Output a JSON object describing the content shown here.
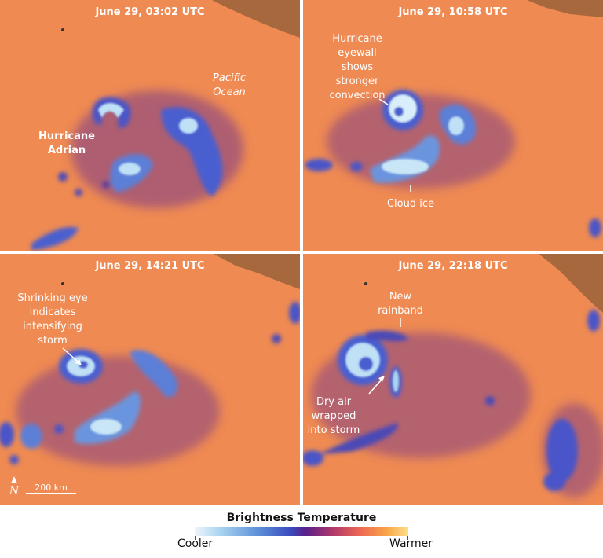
{
  "panels": [
    {
      "timestamp": "June 29, 03:02 UTC",
      "labels": {
        "hurricane_line1": "Hurricane",
        "hurricane_line2": "Adrian",
        "ocean_line1": "Pacific",
        "ocean_line2": "Ocean"
      }
    },
    {
      "timestamp": "June 29, 10:58 UTC",
      "labels": {
        "eyewall_lines": [
          "Hurricane",
          "eyewall",
          "shows",
          "stronger",
          "convection"
        ],
        "cloud_ice": "Cloud ice"
      }
    },
    {
      "timestamp": "June 29, 14:21 UTC",
      "labels": {
        "eye_lines": [
          "Shrinking eye",
          "indicates",
          "intensifying",
          "storm"
        ]
      },
      "scale_bar": "200 km",
      "north_arrow": "N"
    },
    {
      "timestamp": "June 29, 22:18 UTC",
      "labels": {
        "rainband_lines": [
          "New",
          "rainband"
        ],
        "dry_air_lines": [
          "Dry air",
          "wrapped",
          "into storm"
        ]
      }
    }
  ],
  "legend": {
    "title": "Brightness Temperature",
    "low_label": "Cooler",
    "high_label": "Warmer",
    "colors": [
      "#eef6fb",
      "#a9d4ef",
      "#5b8fd8",
      "#3a4bbd",
      "#5a1f8a",
      "#b23a6a",
      "#ef6a52",
      "#f7a648",
      "#fde08a"
    ]
  },
  "colors": {
    "ocean": "#ef8a52",
    "land": "#a8683e",
    "cloud_cold": "#c9e6f7",
    "cloud_mid": "#4a5fd0",
    "cloud_edge": "#4a2a95"
  }
}
